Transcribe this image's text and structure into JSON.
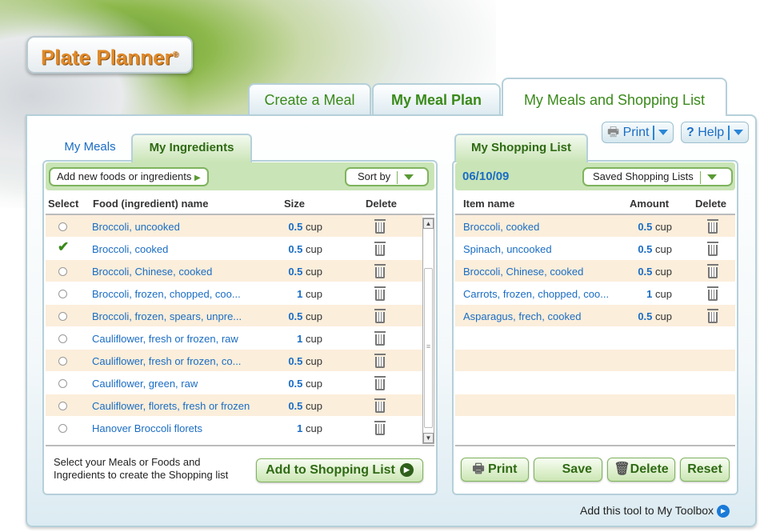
{
  "app": {
    "logo": "Plate Planner",
    "logo_mark": "®"
  },
  "main_tabs": [
    {
      "label": "Create a Meal"
    },
    {
      "label": "My Meal Plan"
    },
    {
      "label": "My Meals and Shopping List"
    }
  ],
  "toolbar": {
    "print": "Print",
    "help": "Help",
    "help_icon": "?"
  },
  "left": {
    "tabs": [
      {
        "label": "My Meals"
      },
      {
        "label": "My Ingredients"
      }
    ],
    "add_foods": "Add new foods or ingredients",
    "sort_by": "Sort by",
    "headers": {
      "select": "Select",
      "name": "Food (ingredient) name",
      "size": "Size",
      "delete": "Delete"
    },
    "rows": [
      {
        "name": "Broccoli, uncooked",
        "qty": "0.5",
        "unit": "cup",
        "selected": false
      },
      {
        "name": "Broccoli, cooked",
        "qty": "0.5",
        "unit": "cup",
        "selected": true
      },
      {
        "name": "Broccoli, Chinese, cooked",
        "qty": "0.5",
        "unit": "cup",
        "selected": false
      },
      {
        "name": "Broccoli, frozen, chopped, coo...",
        "qty": "1",
        "unit": "cup",
        "selected": false
      },
      {
        "name": "Broccoli, frozen, spears, unpre...",
        "qty": "0.5",
        "unit": "cup",
        "selected": false
      },
      {
        "name": "Cauliflower, fresh or frozen, raw",
        "qty": "1",
        "unit": "cup",
        "selected": false
      },
      {
        "name": "Cauliflower, fresh or frozen, co...",
        "qty": "0.5",
        "unit": "cup",
        "selected": false
      },
      {
        "name": "Cauliflower, green, raw",
        "qty": "0.5",
        "unit": "cup",
        "selected": false
      },
      {
        "name": "Cauliflower, florets, fresh or frozen",
        "qty": "0.5",
        "unit": "cup",
        "selected": false
      },
      {
        "name": "Hanover Broccoli florets",
        "qty": "1",
        "unit": "cup",
        "selected": false
      }
    ],
    "instructions": "Select your Meals or Foods and Ingredients to create the Shopping list",
    "add_button": "Add to Shopping List"
  },
  "right": {
    "tab": "My Shopping List",
    "date": "06/10/09",
    "saved_lists": "Saved Shopping Lists",
    "headers": {
      "name": "Item name",
      "amount": "Amount",
      "delete": "Delete"
    },
    "rows": [
      {
        "name": "Broccoli, cooked",
        "qty": "0.5",
        "unit": "cup"
      },
      {
        "name": "Spinach, uncooked",
        "qty": "0.5",
        "unit": "cup"
      },
      {
        "name": "Broccoli, Chinese, cooked",
        "qty": "0.5",
        "unit": "cup"
      },
      {
        "name": "Carrots, frozen, chopped, coo...",
        "qty": "1",
        "unit": "cup"
      },
      {
        "name": "Asparagus, frech, cooked",
        "qty": "0.5",
        "unit": "cup"
      }
    ],
    "buttons": {
      "print": "Print",
      "save": "Save",
      "delete": "Delete",
      "reset": "Reset"
    }
  },
  "footer": {
    "toolbox_link": "Add this tool to My Toolbox"
  },
  "colors": {
    "accent_green": "#3a8a1a",
    "link_blue": "#1a6dc4",
    "row_alt": "#fbeedb",
    "border": "#b5d0da"
  }
}
